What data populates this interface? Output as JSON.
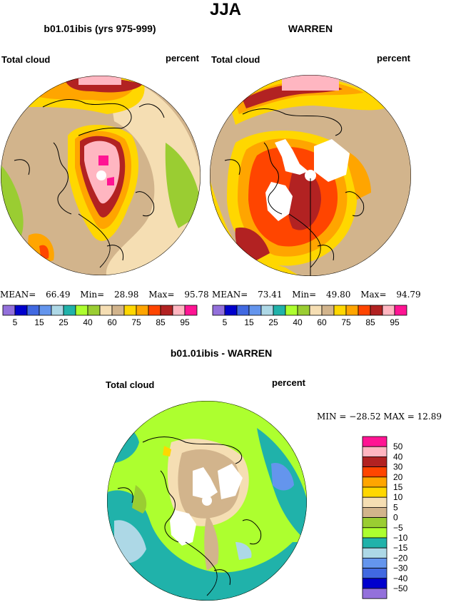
{
  "title": "JJA",
  "palette": {
    "purple": "#9370db",
    "navy": "#0000cd",
    "royal": "#4169e1",
    "cornflower": "#6495ed",
    "lightblue": "#add8e6",
    "teal": "#20b2aa",
    "lime": "#adff2f",
    "olive": "#9acd32",
    "tan": "#d2b48c",
    "wheat": "#f5deb3",
    "gold": "#ffd700",
    "orange": "#ffa500",
    "redorange": "#ff4500",
    "brick": "#b22222",
    "pink": "#ffb6c1",
    "magenta": "#ff1493"
  },
  "panels": {
    "model": {
      "title": "b01.01ibis (yrs 975-999)",
      "variable": "Total cloud",
      "units": "percent",
      "stats": {
        "mean_label": "MEAN=",
        "mean": "66.49",
        "min_label": "Min=",
        "min": "28.98",
        "max_label": "Max=",
        "max": "95.78"
      }
    },
    "obs": {
      "title": "WARREN",
      "variable": "Total cloud",
      "units": "percent",
      "stats": {
        "mean_label": "MEAN=",
        "mean": "73.41",
        "min_label": "Min=",
        "min": "49.80",
        "max_label": "Max=",
        "max": "94.79"
      }
    },
    "diff": {
      "title": "b01.01ibis - WARREN",
      "variable": "Total cloud",
      "units": "percent",
      "stats_text": "MIN = −28.52  MAX =  12.89"
    }
  },
  "top_colorbar": {
    "colors": [
      "#9370db",
      "#0000cd",
      "#4169e1",
      "#6495ed",
      "#add8e6",
      "#20b2aa",
      "#adff2f",
      "#9acd32",
      "#f5deb3",
      "#d2b48c",
      "#ffd700",
      "#ffa500",
      "#ff4500",
      "#b22222",
      "#ffb6c1",
      "#ff1493"
    ],
    "labels": [
      "5",
      "15",
      "25",
      "40",
      "60",
      "75",
      "85",
      "95"
    ]
  },
  "diff_colorbar": {
    "colors": [
      "#ff1493",
      "#ffb6c1",
      "#b22222",
      "#ff4500",
      "#ffa500",
      "#ffd700",
      "#f5deb3",
      "#d2b48c",
      "#9acd32",
      "#adff2f",
      "#20b2aa",
      "#add8e6",
      "#6495ed",
      "#4169e1",
      "#0000cd",
      "#9370db"
    ],
    "labels": [
      "50",
      "40",
      "30",
      "20",
      "15",
      "10",
      "5",
      "0",
      "−5",
      "−10",
      "−15",
      "−20",
      "−30",
      "−40",
      "−50"
    ]
  }
}
